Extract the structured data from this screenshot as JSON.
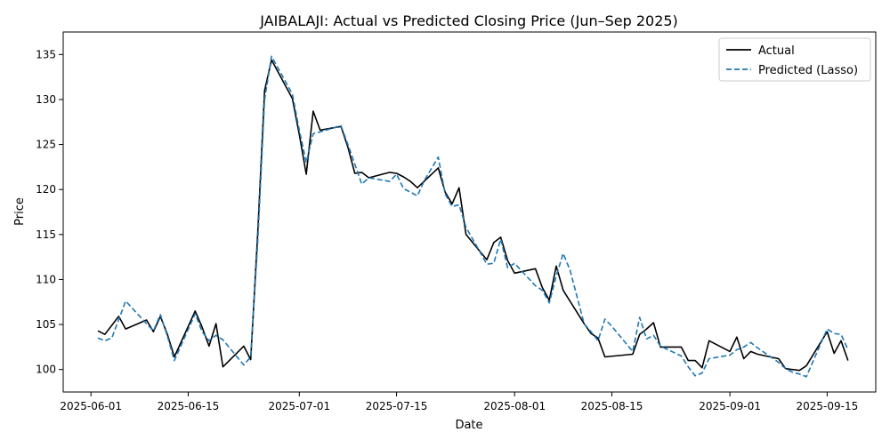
{
  "chart_data": {
    "type": "line",
    "title": "JAIBALAJI: Actual vs Predicted Closing Price (Jun–Sep 2025)",
    "xlabel": "Date",
    "ylabel": "Price",
    "xlim": [
      "2025-05-28",
      "2025-09-22"
    ],
    "ylim": [
      97.5,
      137.5
    ],
    "x_ticks": [
      "2025-06-01",
      "2025-06-15",
      "2025-07-01",
      "2025-07-15",
      "2025-08-01",
      "2025-08-15",
      "2025-09-01",
      "2025-09-15"
    ],
    "y_ticks": [
      100,
      105,
      110,
      115,
      120,
      125,
      130,
      135
    ],
    "grid": false,
    "legend_position": "top-right",
    "series": [
      {
        "name": "Actual",
        "color": "#000000",
        "style": "solid",
        "points": [
          [
            "2025-06-02",
            104.3
          ],
          [
            "2025-06-03",
            103.9
          ],
          [
            "2025-06-05",
            105.9
          ],
          [
            "2025-06-06",
            104.5
          ],
          [
            "2025-06-09",
            105.5
          ],
          [
            "2025-06-10",
            104.2
          ],
          [
            "2025-06-11",
            105.9
          ],
          [
            "2025-06-12",
            103.9
          ],
          [
            "2025-06-13",
            101.4
          ],
          [
            "2025-06-16",
            106.5
          ],
          [
            "2025-06-17",
            104.7
          ],
          [
            "2025-06-18",
            102.6
          ],
          [
            "2025-06-19",
            105.1
          ],
          [
            "2025-06-20",
            100.3
          ],
          [
            "2025-06-23",
            102.6
          ],
          [
            "2025-06-24",
            101.1
          ],
          [
            "2025-06-25",
            115.0
          ],
          [
            "2025-06-26",
            131.0
          ],
          [
            "2025-06-27",
            134.4
          ],
          [
            "2025-06-30",
            130.1
          ],
          [
            "2025-07-01",
            126.1
          ],
          [
            "2025-07-02",
            121.7
          ],
          [
            "2025-07-03",
            128.7
          ],
          [
            "2025-07-04",
            126.6
          ],
          [
            "2025-07-07",
            127.0
          ],
          [
            "2025-07-08",
            124.7
          ],
          [
            "2025-07-09",
            121.8
          ],
          [
            "2025-07-10",
            121.9
          ],
          [
            "2025-07-11",
            121.3
          ],
          [
            "2025-07-14",
            121.9
          ],
          [
            "2025-07-15",
            121.8
          ],
          [
            "2025-07-16",
            121.4
          ],
          [
            "2025-07-17",
            120.9
          ],
          [
            "2025-07-18",
            120.2
          ],
          [
            "2025-07-21",
            122.4
          ],
          [
            "2025-07-22",
            119.7
          ],
          [
            "2025-07-23",
            118.4
          ],
          [
            "2025-07-24",
            120.2
          ],
          [
            "2025-07-25",
            115.0
          ],
          [
            "2025-07-28",
            112.2
          ],
          [
            "2025-07-29",
            114.1
          ],
          [
            "2025-07-30",
            114.7
          ],
          [
            "2025-07-31",
            112.1
          ],
          [
            "2025-08-01",
            110.7
          ],
          [
            "2025-08-04",
            111.2
          ],
          [
            "2025-08-05",
            109.1
          ],
          [
            "2025-08-06",
            107.7
          ],
          [
            "2025-08-07",
            111.5
          ],
          [
            "2025-08-08",
            108.8
          ],
          [
            "2025-08-11",
            105.1
          ],
          [
            "2025-08-12",
            104.0
          ],
          [
            "2025-08-13",
            103.5
          ],
          [
            "2025-08-14",
            101.4
          ],
          [
            "2025-08-18",
            101.7
          ],
          [
            "2025-08-19",
            103.9
          ],
          [
            "2025-08-20",
            104.5
          ],
          [
            "2025-08-21",
            105.2
          ],
          [
            "2025-08-22",
            102.5
          ],
          [
            "2025-08-25",
            102.5
          ],
          [
            "2025-08-26",
            101.0
          ],
          [
            "2025-08-27",
            101.0
          ],
          [
            "2025-08-28",
            100.2
          ],
          [
            "2025-08-29",
            103.2
          ],
          [
            "2025-09-01",
            102.0
          ],
          [
            "2025-09-02",
            103.6
          ],
          [
            "2025-09-03",
            101.2
          ],
          [
            "2025-09-04",
            102.0
          ],
          [
            "2025-09-05",
            101.7
          ],
          [
            "2025-09-08",
            101.2
          ],
          [
            "2025-09-09",
            100.1
          ],
          [
            "2025-09-10",
            100.0
          ],
          [
            "2025-09-11",
            99.9
          ],
          [
            "2025-09-12",
            100.4
          ],
          [
            "2025-09-15",
            104.2
          ],
          [
            "2025-09-16",
            101.8
          ],
          [
            "2025-09-17",
            103.2
          ],
          [
            "2025-09-18",
            101.0
          ]
        ]
      },
      {
        "name": "Predicted (Lasso)",
        "color": "#1f77b4",
        "style": "dashed",
        "points": [
          [
            "2025-06-02",
            103.5
          ],
          [
            "2025-06-03",
            103.2
          ],
          [
            "2025-06-04",
            103.5
          ],
          [
            "2025-06-06",
            107.6
          ],
          [
            "2025-06-09",
            105.1
          ],
          [
            "2025-06-10",
            104.3
          ],
          [
            "2025-06-11",
            106.1
          ],
          [
            "2025-06-12",
            103.7
          ],
          [
            "2025-06-13",
            101.0
          ],
          [
            "2025-06-16",
            106.2
          ],
          [
            "2025-06-17",
            104.2
          ],
          [
            "2025-06-18",
            103.2
          ],
          [
            "2025-06-19",
            103.8
          ],
          [
            "2025-06-20",
            103.3
          ],
          [
            "2025-06-23",
            100.5
          ],
          [
            "2025-06-24",
            101.4
          ],
          [
            "2025-06-25",
            114.0
          ],
          [
            "2025-06-26",
            130.0
          ],
          [
            "2025-06-27",
            134.8
          ],
          [
            "2025-06-30",
            130.6
          ],
          [
            "2025-07-01",
            126.6
          ],
          [
            "2025-07-02",
            123.0
          ],
          [
            "2025-07-03",
            126.2
          ],
          [
            "2025-07-04",
            126.4
          ],
          [
            "2025-07-07",
            127.1
          ],
          [
            "2025-07-08",
            125.0
          ],
          [
            "2025-07-09",
            122.8
          ],
          [
            "2025-07-10",
            120.6
          ],
          [
            "2025-07-11",
            121.3
          ],
          [
            "2025-07-14",
            120.9
          ],
          [
            "2025-07-15",
            121.7
          ],
          [
            "2025-07-16",
            120.1
          ],
          [
            "2025-07-18",
            119.3
          ],
          [
            "2025-07-19",
            121.0
          ],
          [
            "2025-07-21",
            123.6
          ],
          [
            "2025-07-22",
            119.5
          ],
          [
            "2025-07-23",
            118.1
          ],
          [
            "2025-07-24",
            118.3
          ],
          [
            "2025-07-25",
            115.8
          ],
          [
            "2025-07-28",
            111.7
          ],
          [
            "2025-07-29",
            111.8
          ],
          [
            "2025-07-30",
            114.5
          ],
          [
            "2025-07-31",
            111.3
          ],
          [
            "2025-08-01",
            111.8
          ],
          [
            "2025-08-04",
            109.3
          ],
          [
            "2025-08-05",
            108.8
          ],
          [
            "2025-08-06",
            107.4
          ],
          [
            "2025-08-07",
            110.4
          ],
          [
            "2025-08-08",
            112.9
          ],
          [
            "2025-08-09",
            111.0
          ],
          [
            "2025-08-11",
            105.1
          ],
          [
            "2025-08-12",
            104.2
          ],
          [
            "2025-08-13",
            103.2
          ],
          [
            "2025-08-14",
            105.6
          ],
          [
            "2025-08-15",
            104.8
          ],
          [
            "2025-08-18",
            102.0
          ],
          [
            "2025-08-19",
            105.8
          ],
          [
            "2025-08-20",
            103.4
          ],
          [
            "2025-08-21",
            103.8
          ],
          [
            "2025-08-22",
            102.6
          ],
          [
            "2025-08-25",
            101.5
          ],
          [
            "2025-08-26",
            100.3
          ],
          [
            "2025-08-27",
            99.3
          ],
          [
            "2025-08-28",
            99.6
          ],
          [
            "2025-08-29",
            101.2
          ],
          [
            "2025-09-01",
            101.6
          ],
          [
            "2025-09-02",
            102.2
          ],
          [
            "2025-09-03",
            102.5
          ],
          [
            "2025-09-04",
            103.0
          ],
          [
            "2025-09-05",
            102.4
          ],
          [
            "2025-09-08",
            100.8
          ],
          [
            "2025-09-09",
            100.1
          ],
          [
            "2025-09-10",
            99.7
          ],
          [
            "2025-09-11",
            99.5
          ],
          [
            "2025-09-12",
            99.2
          ],
          [
            "2025-09-15",
            104.5
          ],
          [
            "2025-09-16",
            104.0
          ],
          [
            "2025-09-17",
            103.9
          ],
          [
            "2025-09-18",
            102.2
          ]
        ]
      }
    ]
  }
}
